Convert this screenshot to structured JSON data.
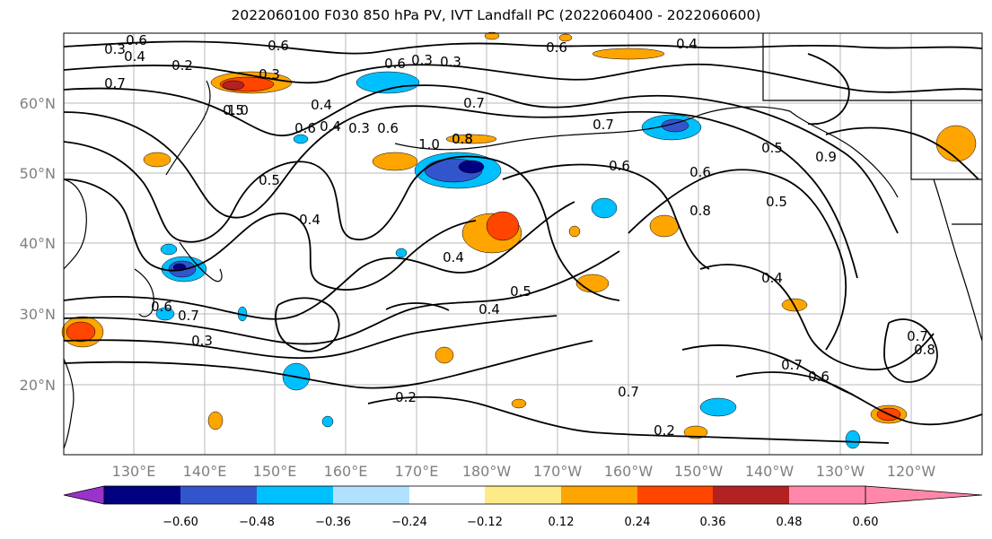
{
  "title": "2022060100 F030 850 hPa PV, IVT Landfall PC (2022060400 - 2022060600)",
  "lat_labels": [
    "60°N",
    "50°N",
    "40°N",
    "30°N",
    "20°N"
  ],
  "lon_labels": [
    "130°E",
    "140°E",
    "150°E",
    "160°E",
    "170°E",
    "180°W",
    "170°W",
    "160°W",
    "150°W",
    "140°W",
    "130°W",
    "120°W"
  ],
  "colorbar": {
    "colors": [
      "#9933cc",
      "#000080",
      "#3355cc",
      "#00bfff",
      "#b0e2ff",
      "#ffffff",
      "#ffea88",
      "#ffa500",
      "#ff4500",
      "#b22222",
      "#ff88aa"
    ],
    "tick_labels": [
      "−0.60",
      "−0.48",
      "−0.36",
      "−0.24",
      "−0.12",
      "0.12",
      "0.24",
      "0.36",
      "0.48",
      "0.60"
    ]
  },
  "contour_labels": [
    "0.3",
    "0.6",
    "0.4",
    "0.7",
    "0.2",
    "0.3",
    "0.6",
    "0.5",
    "0.4",
    "0.6",
    "0.3",
    "1.0",
    "0.7",
    "0.4",
    "0.3",
    "0.8",
    "1.0",
    "0.8",
    "0.6",
    "0.5",
    "0.4",
    "0.6",
    "0.7",
    "0.6",
    "0.6",
    "0.7",
    "0.5",
    "0.8",
    "0.4",
    "0.4",
    "0.3",
    "0.5",
    "0.4",
    "0.7",
    "0.5",
    "0.6",
    "0.3",
    "0.6",
    "0.4",
    "0.2",
    "0.7",
    "0.6",
    "0.8",
    "0.2",
    "0.7",
    "0.9"
  ]
}
